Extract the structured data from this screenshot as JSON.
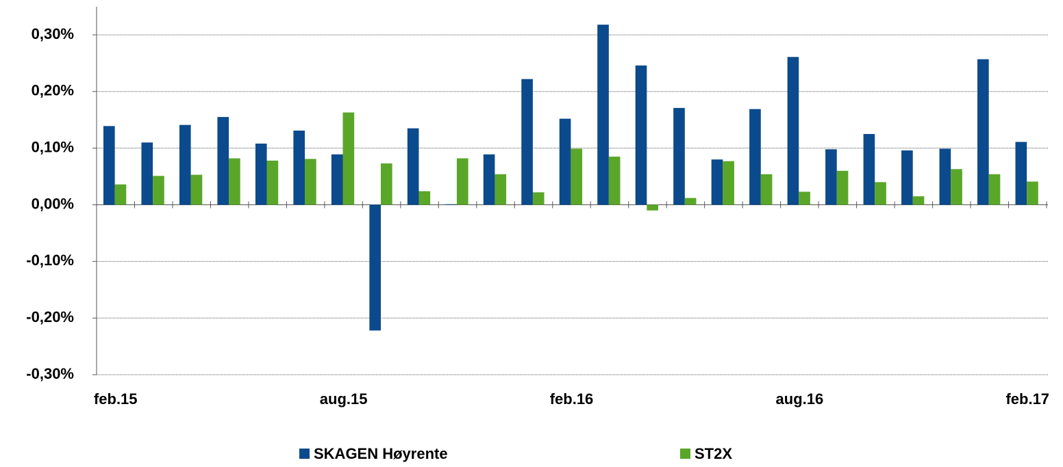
{
  "chart_data": {
    "type": "bar",
    "categories": [
      "feb.15",
      null,
      null,
      null,
      null,
      null,
      "aug.15",
      null,
      null,
      null,
      null,
      null,
      "feb.16",
      null,
      null,
      null,
      null,
      null,
      "aug.16",
      null,
      null,
      null,
      null,
      null,
      "feb.17"
    ],
    "series": [
      {
        "name": "SKAGEN Høyrente",
        "color": "#0b4a8c",
        "values": [
          0.139,
          0.11,
          0.141,
          0.155,
          0.108,
          0.131,
          0.089,
          -0.222,
          0.135,
          0.001,
          0.089,
          0.222,
          0.152,
          0.318,
          0.246,
          0.171,
          0.08,
          0.169,
          0.261,
          0.098,
          0.125,
          0.096,
          0.099,
          0.257,
          0.111
        ]
      },
      {
        "name": "ST2X",
        "color": "#5aa629",
        "values": [
          0.036,
          0.051,
          0.053,
          0.082,
          0.078,
          0.081,
          0.163,
          0.073,
          0.024,
          0.082,
          0.054,
          0.022,
          0.099,
          0.085,
          -0.01,
          0.012,
          0.077,
          0.054,
          0.023,
          0.06,
          0.04,
          0.015,
          0.063,
          0.054,
          0.041
        ]
      }
    ],
    "ylim": [
      -0.3,
      0.3
    ],
    "yticks": [
      {
        "value": -0.3,
        "label": "-0,30%"
      },
      {
        "value": -0.2,
        "label": "-0,20%"
      },
      {
        "value": -0.1,
        "label": "-0,10%"
      },
      {
        "value": 0,
        "label": "0,00%"
      },
      {
        "value": 0.1,
        "label": "0,10%"
      },
      {
        "value": 0.2,
        "label": "0,20%"
      },
      {
        "value": 0.3,
        "label": "0,30%"
      }
    ],
    "grid": true,
    "legend": "bottom"
  }
}
